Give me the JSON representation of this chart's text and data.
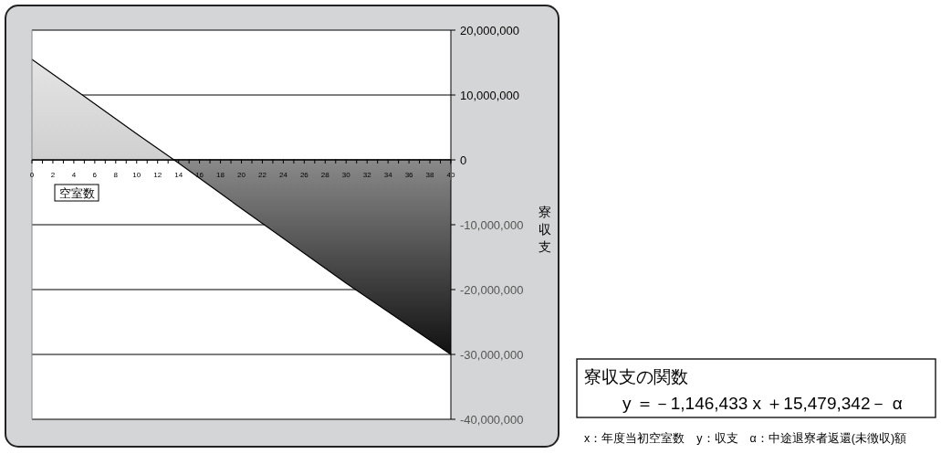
{
  "chart_data": {
    "type": "area",
    "xlabel": "空室数",
    "ylabel": "寮収支",
    "annotations": [
      "寮収支の関数",
      "y ＝－1,146,433 x ＋15,479,342－ α",
      "x：年度当初空室数　y：収支　α：中途退寮者返還(未徴収)額"
    ],
    "x": [
      0,
      5,
      10,
      14,
      20,
      30,
      40
    ],
    "values": [
      15500000,
      9800000,
      4000000,
      -500000,
      -7500000,
      -19000000,
      -30000000
    ],
    "color": "#000000",
    "xlim": [
      0,
      40
    ],
    "xticks": [
      0,
      {
        "value": 1,
        "label": null
      },
      2,
      {
        "value": 3,
        "label": null
      },
      4,
      {
        "value": 5,
        "label": null
      },
      6,
      {
        "value": 7,
        "label": null
      },
      8,
      {
        "value": 9,
        "label": null
      },
      10,
      {
        "value": 11,
        "label": null
      },
      12,
      {
        "value": 13,
        "label": null
      },
      14,
      {
        "value": 15,
        "label": null
      },
      16,
      {
        "value": 17,
        "label": null
      },
      18,
      {
        "value": 19,
        "label": null
      },
      20,
      {
        "value": 21,
        "label": null
      },
      22,
      {
        "value": 23,
        "label": null
      },
      24,
      {
        "value": 25,
        "label": null
      },
      26,
      {
        "value": 27,
        "label": null
      },
      28,
      {
        "value": 29,
        "label": null
      },
      30,
      {
        "value": 31,
        "label": null
      },
      32,
      {
        "value": 33,
        "label": null
      },
      34,
      {
        "value": 35,
        "label": null
      },
      36,
      {
        "value": 37,
        "label": null
      },
      38,
      {
        "value": 39,
        "label": null
      },
      40
    ],
    "ylim": [
      -40000000,
      20000000
    ],
    "yticks": [
      {
        "value": -40000000,
        "label": "-40,000,000"
      },
      {
        "value": -30000000,
        "label": "-30,000,000"
      },
      {
        "value": -20000000,
        "label": "-20,000,000"
      },
      {
        "value": -10000000,
        "label": "-10,000,000"
      },
      0,
      {
        "value": 10000000,
        "label": "10,000,000"
      },
      {
        "value": 20000000,
        "label": "20,000,000"
      }
    ],
    "grid": "y"
  }
}
